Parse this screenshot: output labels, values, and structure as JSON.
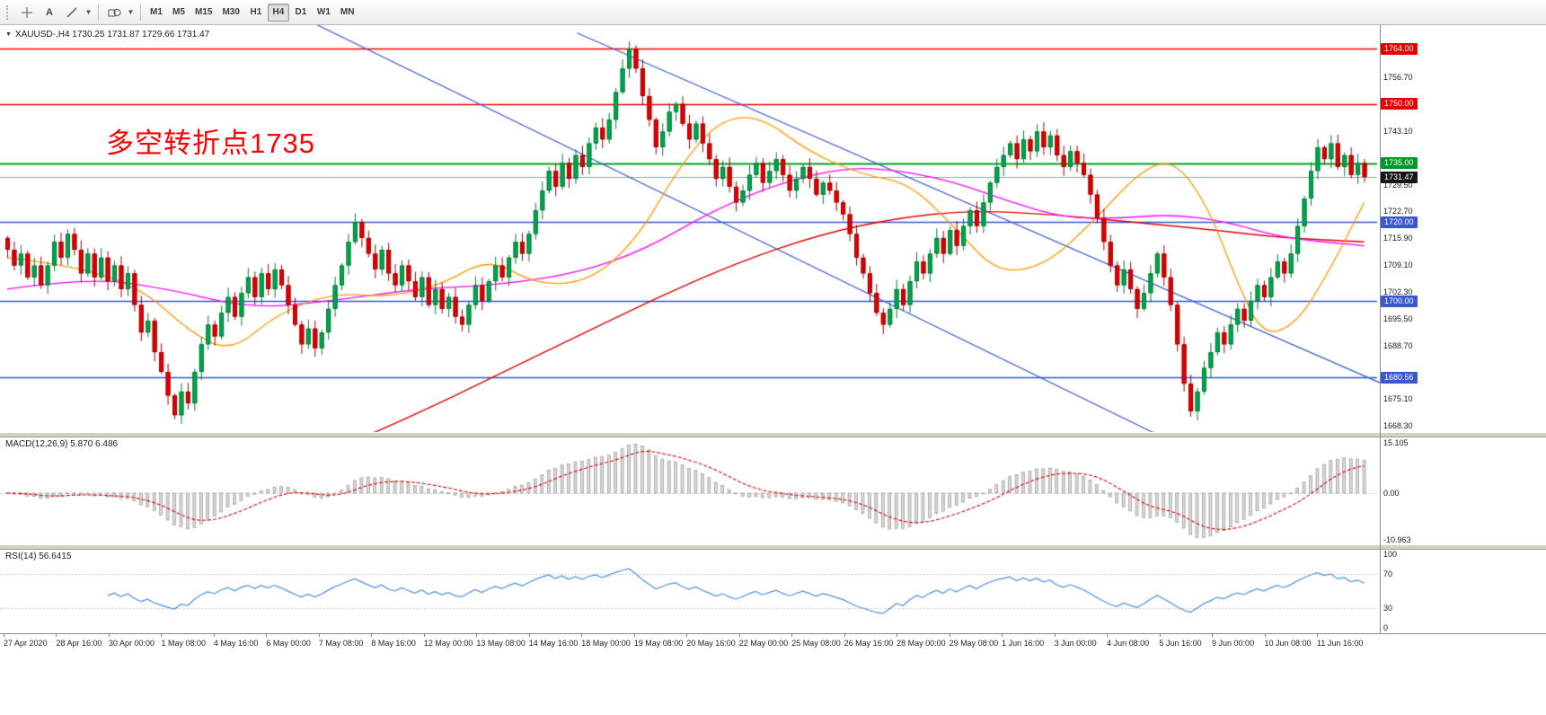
{
  "toolbar": {
    "text_tool_label": "A",
    "chevron_glyph": "▼",
    "timeframes": [
      "M1",
      "M5",
      "M15",
      "M30",
      "H1",
      "H4",
      "D1",
      "W1",
      "MN"
    ],
    "active_timeframe": "H4"
  },
  "chart": {
    "symbol_line": "XAUUSD-,H4  1730.25 1731.87 1729.66 1731.47",
    "dropdown_glyph": "▼",
    "annotation": {
      "text": "多空转折点1735",
      "color": "#ff0000"
    }
  },
  "indicators": {
    "macd": {
      "label": "MACD(12,26,9) 5.870 6.486",
      "scale": {
        "top": "15.105",
        "zero": "0.00",
        "bottom": "-10.963"
      }
    },
    "rsi": {
      "label": "RSI(14) 56.6415",
      "scale": [
        "100",
        "70",
        "30",
        "0"
      ]
    }
  },
  "price_axis": {
    "labels": [
      "1756.70",
      "1743.10",
      "1729.50",
      "1722.70",
      "1715.90",
      "1709.10",
      "1702.30",
      "1695.50",
      "1688.70",
      "1675.10",
      "1668.30"
    ],
    "badges": [
      {
        "text": "1764.00",
        "price": 1764.0,
        "bg": "#e60000"
      },
      {
        "text": "1750.00",
        "price": 1750.0,
        "bg": "#e60000"
      },
      {
        "text": "1735.00",
        "price": 1735.0,
        "bg": "#009926"
      },
      {
        "text": "1731.47",
        "price": 1731.47,
        "bg": "#161616"
      },
      {
        "text": "1720.00",
        "price": 1720.0,
        "bg": "#3a57d0"
      },
      {
        "text": "1700.00",
        "price": 1700.0,
        "bg": "#3a57d0"
      },
      {
        "text": "1680.56",
        "price": 1680.56,
        "bg": "#3a57d0"
      }
    ]
  },
  "time_axis": [
    "27 Apr 2020",
    "28 Apr 16:00",
    "30 Apr 00:00",
    "1 May 08:00",
    "4 May 16:00",
    "6 May 00:00",
    "7 May 08:00",
    "8 May 16:00",
    "12 May 00:00",
    "13 May 08:00",
    "14 May 16:00",
    "18 May 00:00",
    "19 May 08:00",
    "20 May 16:00",
    "22 May 00:00",
    "25 May 08:00",
    "26 May 16:00",
    "28 May 00:00",
    "29 May 08:00",
    "1 Jun 16:00",
    "3 Jun 00:00",
    "4 Jun 08:00",
    "5 Jun 16:00",
    "9 Jun 00:00",
    "10 Jun 08:00",
    "11 Jun 16:00"
  ],
  "chart_data": {
    "type": "candlestick",
    "symbol": "XAUUSD-",
    "timeframe": "H4",
    "price_min": 1666.5,
    "price_max": 1770,
    "first_open": 1716,
    "closes": [
      1713,
      1709,
      1712,
      1706,
      1709,
      1704,
      1709,
      1715,
      1711,
      1717,
      1713,
      1707,
      1712,
      1706,
      1711,
      1705,
      1709,
      1703,
      1707,
      1699,
      1692,
      1695,
      1687,
      1682,
      1676,
      1671,
      1677,
      1674,
      1682,
      1689,
      1694,
      1691,
      1697,
      1701,
      1696,
      1702,
      1706,
      1701,
      1707,
      1703,
      1708,
      1704,
      1699,
      1694,
      1689,
      1693,
      1688,
      1692,
      1698,
      1704,
      1709,
      1715,
      1720,
      1716,
      1712,
      1708,
      1713,
      1707,
      1704,
      1709,
      1705,
      1701,
      1706,
      1699,
      1703,
      1698,
      1701,
      1696,
      1694,
      1699,
      1704,
      1700,
      1705,
      1709,
      1706,
      1711,
      1715,
      1712,
      1717,
      1723,
      1728,
      1733,
      1729,
      1735,
      1731,
      1737,
      1734,
      1740,
      1744,
      1741,
      1746,
      1753,
      1759,
      1764,
      1759,
      1752,
      1746,
      1739,
      1743,
      1748,
      1750,
      1745,
      1741,
      1745,
      1740,
      1736,
      1731,
      1734,
      1729,
      1725,
      1728,
      1732,
      1735,
      1730,
      1733,
      1736,
      1732,
      1728,
      1731,
      1734,
      1731,
      1727,
      1730,
      1728,
      1725,
      1722,
      1717,
      1711,
      1707,
      1702,
      1697,
      1694,
      1698,
      1703,
      1699,
      1705,
      1710,
      1707,
      1712,
      1716,
      1712,
      1718,
      1714,
      1719,
      1723,
      1719,
      1725,
      1730,
      1734,
      1737,
      1740,
      1736,
      1741,
      1738,
      1743,
      1739,
      1742,
      1737,
      1734,
      1738,
      1735,
      1732,
      1727,
      1721,
      1715,
      1709,
      1704,
      1708,
      1703,
      1698,
      1702,
      1707,
      1712,
      1706,
      1699,
      1689,
      1679,
      1672,
      1677,
      1683,
      1687,
      1692,
      1689,
      1694,
      1698,
      1695,
      1700,
      1704,
      1701,
      1706,
      1710,
      1707,
      1712,
      1719,
      1726,
      1733,
      1739,
      1736,
      1740,
      1734,
      1737,
      1732,
      1735,
      1731.5
    ],
    "colors": {
      "up": "#00a651",
      "up_edge": "#007a33",
      "down": "#e00000",
      "down_edge": "#9c0000",
      "ma_orange": "#ff9900",
      "ma_magenta": "#ff00ff",
      "ma_red": "#dd0000",
      "trendline": "#3b5bdb",
      "macd_bar_fill": "#d6d6d6",
      "macd_bar_edge": "#8f8f8f",
      "macd_signal": "#e00000",
      "rsi_line": "#4a90e2",
      "level_dash": "#b9c4d0",
      "zero_dash": "#c4c4c4"
    },
    "hlines": [
      {
        "price": 1764,
        "color": "#e60000",
        "w": 1.4
      },
      {
        "price": 1750,
        "color": "#e60000",
        "w": 1.4
      },
      {
        "price": 1735,
        "color": "#00a020",
        "w": 2
      },
      {
        "price": 1731.47,
        "color": "#8fa3a3",
        "w": 1
      },
      {
        "price": 1720,
        "color": "#2f55cc",
        "w": 1.6
      },
      {
        "price": 1700,
        "color": "#2f55cc",
        "w": 1.6
      },
      {
        "price": 1680.56,
        "color": "#2f55cc",
        "w": 1.6
      }
    ],
    "trendlines": [
      {
        "x0": 0.205,
        "p0": 1774,
        "x1": 0.86,
        "p1": 1664
      },
      {
        "x0": 0.42,
        "p0": 1768,
        "x1": 1.02,
        "p1": 1678
      }
    ],
    "ma_orange": [
      [
        0,
        1711
      ],
      [
        0.05,
        1709
      ],
      [
        0.1,
        1703
      ],
      [
        0.135,
        1692
      ],
      [
        0.165,
        1687
      ],
      [
        0.2,
        1697
      ],
      [
        0.24,
        1702
      ],
      [
        0.28,
        1701
      ],
      [
        0.32,
        1704
      ],
      [
        0.355,
        1711
      ],
      [
        0.39,
        1704
      ],
      [
        0.43,
        1705
      ],
      [
        0.465,
        1716
      ],
      [
        0.495,
        1734
      ],
      [
        0.525,
        1746
      ],
      [
        0.555,
        1747
      ],
      [
        0.59,
        1738
      ],
      [
        0.63,
        1732
      ],
      [
        0.665,
        1730
      ],
      [
        0.7,
        1718
      ],
      [
        0.73,
        1707
      ],
      [
        0.765,
        1709
      ],
      [
        0.8,
        1720
      ],
      [
        0.835,
        1733
      ],
      [
        0.86,
        1736
      ],
      [
        0.885,
        1724
      ],
      [
        0.905,
        1706
      ],
      [
        0.925,
        1691
      ],
      [
        0.95,
        1694
      ],
      [
        0.975,
        1708
      ],
      [
        1,
        1725
      ]
    ],
    "ma_magenta": [
      [
        0,
        1703
      ],
      [
        0.06,
        1706
      ],
      [
        0.12,
        1703
      ],
      [
        0.18,
        1698
      ],
      [
        0.24,
        1700
      ],
      [
        0.3,
        1703
      ],
      [
        0.36,
        1704
      ],
      [
        0.42,
        1707
      ],
      [
        0.47,
        1713
      ],
      [
        0.52,
        1723
      ],
      [
        0.57,
        1730
      ],
      [
        0.62,
        1734
      ],
      [
        0.66,
        1733
      ],
      [
        0.7,
        1730
      ],
      [
        0.74,
        1725
      ],
      [
        0.78,
        1721
      ],
      [
        0.82,
        1721
      ],
      [
        0.86,
        1722
      ],
      [
        0.9,
        1720
      ],
      [
        0.94,
        1716
      ],
      [
        1,
        1714
      ]
    ],
    "ma_red": [
      [
        0.24,
        1662
      ],
      [
        0.3,
        1671
      ],
      [
        0.36,
        1681
      ],
      [
        0.42,
        1691
      ],
      [
        0.48,
        1701
      ],
      [
        0.54,
        1710
      ],
      [
        0.6,
        1717
      ],
      [
        0.655,
        1721
      ],
      [
        0.71,
        1723
      ],
      [
        0.77,
        1722
      ],
      [
        0.83,
        1720
      ],
      [
        0.89,
        1718
      ],
      [
        0.94,
        1716
      ],
      [
        1,
        1715
      ]
    ],
    "macd_params": {
      "fast": 12,
      "slow": 26,
      "signal": 9
    },
    "rsi_period": 14,
    "rsi_levels": [
      70,
      30
    ]
  }
}
